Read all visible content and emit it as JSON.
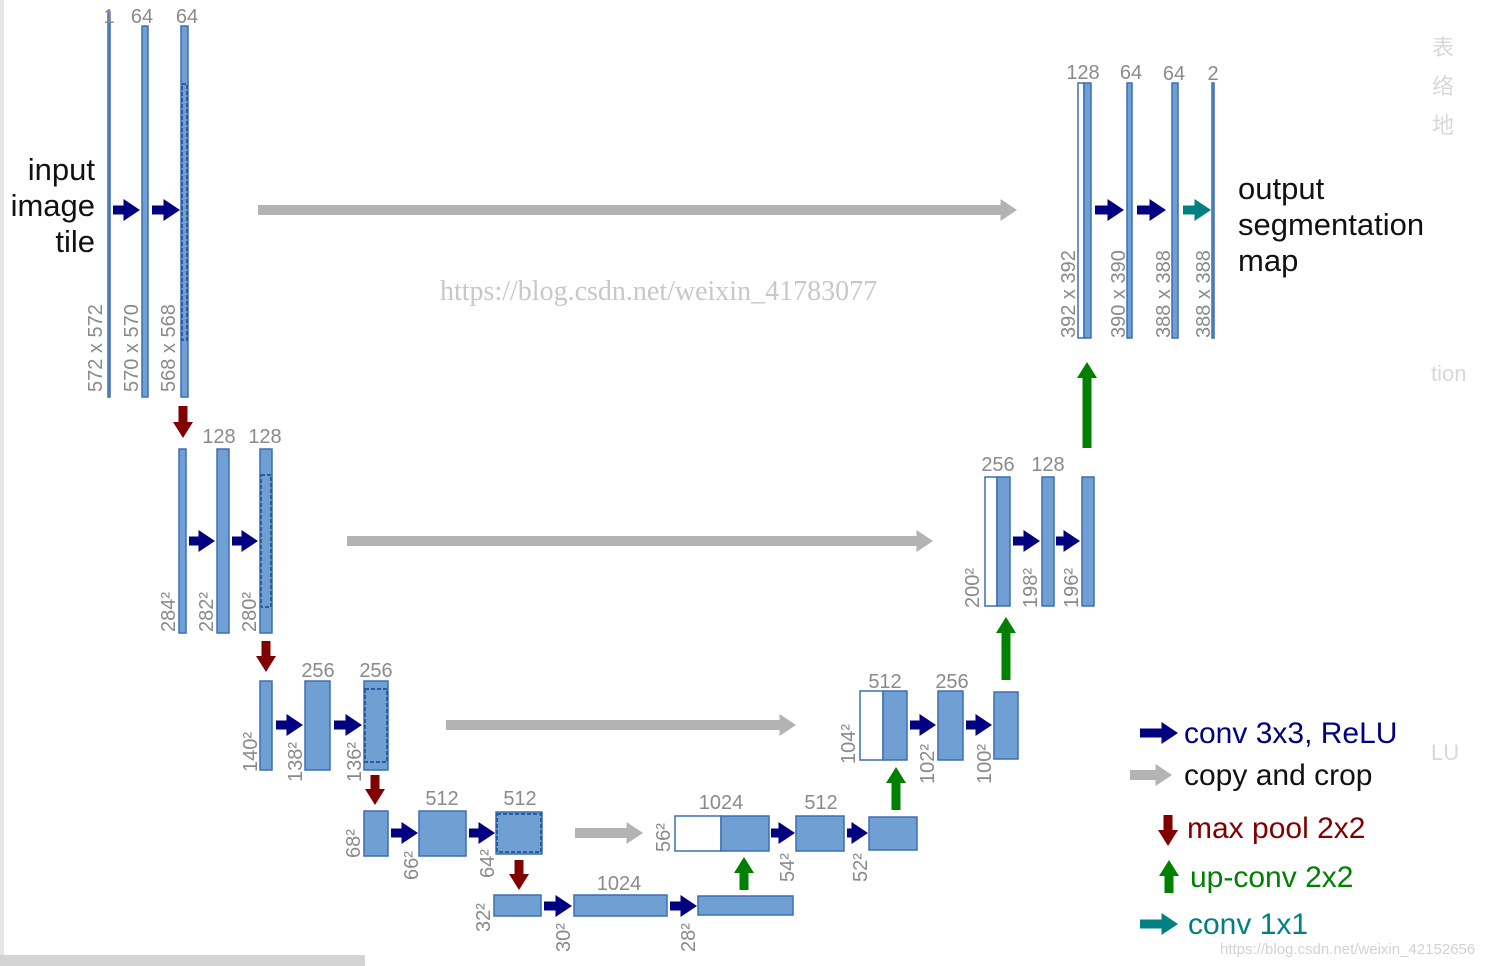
{
  "input_label": [
    "input",
    "image",
    "tile"
  ],
  "output_label": [
    "output",
    "segmentation",
    "map"
  ],
  "encoder": {
    "level1": {
      "channels": [
        "1",
        "64",
        "64"
      ],
      "sizes": [
        "572 x 572",
        "570 x 570",
        "568 x 568"
      ]
    },
    "level2": {
      "channels": [
        "128",
        "128"
      ],
      "sizes": [
        "284²",
        "282²",
        "280²"
      ]
    },
    "level3": {
      "channels": [
        "256",
        "256"
      ],
      "sizes": [
        "140²",
        "138²",
        "136²"
      ]
    },
    "level4": {
      "channels": [
        "512",
        "512"
      ],
      "sizes": [
        "68²",
        "66²",
        "64²"
      ]
    }
  },
  "bottleneck": {
    "channels": [
      "1024"
    ],
    "sizes": [
      "32²",
      "30²",
      "28²"
    ]
  },
  "decoder": {
    "level4": {
      "channels": [
        "1024",
        "512"
      ],
      "sizes": [
        "56²",
        "54²",
        "52²"
      ]
    },
    "level3": {
      "channels": [
        "512",
        "256"
      ],
      "sizes": [
        "104²",
        "102²",
        "100²"
      ]
    },
    "level2": {
      "channels": [
        "256",
        "128"
      ],
      "sizes": [
        "200²",
        "198²",
        "196²"
      ]
    },
    "level1": {
      "channels": [
        "128",
        "64",
        "64",
        "2"
      ],
      "sizes": [
        "392 x 392",
        "390 x 390",
        "388 x 388",
        "388 x 388"
      ]
    }
  },
  "legend": [
    {
      "label": "conv 3x3, ReLU",
      "icon": "arrow-right-icon",
      "color": "#000080"
    },
    {
      "label": "copy and crop",
      "icon": "arrow-right-icon",
      "color": "#b3b3b3"
    },
    {
      "label": "max pool 2x2",
      "icon": "arrow-down-icon",
      "color": "#800000"
    },
    {
      "label": "up-conv 2x2",
      "icon": "arrow-up-icon",
      "color": "#008000"
    },
    {
      "label": "conv 1x1",
      "icon": "arrow-right-icon",
      "color": "#008080"
    }
  ],
  "colors": {
    "feature_map_fill": "#6f9fd3",
    "feature_map_stroke": "#3c6eb4",
    "label_text": "#8a8a8a"
  },
  "watermarks": [
    "https://blog.csdn.net/weixin_41783077",
    "https://blog.csdn.net/weixin_42152656"
  ],
  "side_fragments": [
    "表",
    "络",
    "地",
    "tion",
    "LU"
  ]
}
